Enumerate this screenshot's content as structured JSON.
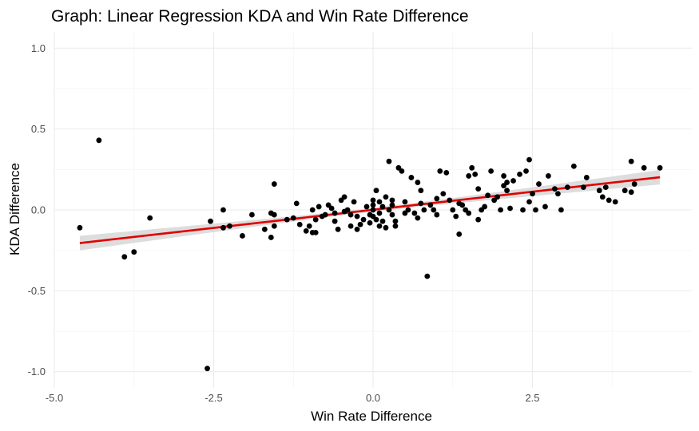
{
  "chart_data": {
    "type": "scatter",
    "title": "Graph: Linear Regression KDA and Win Rate Difference",
    "xlabel": "Win Rate Difference",
    "ylabel": "KDA Difference",
    "xlim": [
      -5.0,
      5.0
    ],
    "ylim": [
      -1.1,
      1.1
    ],
    "x_ticks": [
      -5.0,
      -2.5,
      0.0,
      2.5
    ],
    "x_tick_labels": [
      "-5.0",
      "-2.5",
      "0.0",
      "2.5"
    ],
    "y_ticks": [
      -1.0,
      -0.5,
      0.0,
      0.5,
      1.0
    ],
    "y_tick_labels": [
      "-1.0",
      "-0.5",
      "0.0",
      "0.5",
      "1.0"
    ],
    "grid": true,
    "colors": {
      "points": "#000000",
      "fit_line": "#e00000",
      "confidence_band": "#d9d9d9",
      "grid": "#ebebeb"
    },
    "regression": {
      "x_range": [
        -4.6,
        4.5
      ],
      "y_start": -0.205,
      "y_end": 0.202,
      "ci_halfwidth_ends": 0.045,
      "ci_halfwidth_center": 0.012
    },
    "points": [
      [
        -4.6,
        -0.11
      ],
      [
        -4.3,
        0.43
      ],
      [
        -3.9,
        -0.29
      ],
      [
        -3.75,
        -0.26
      ],
      [
        -3.5,
        -0.05
      ],
      [
        -2.6,
        -0.98
      ],
      [
        -2.55,
        -0.07
      ],
      [
        -2.35,
        0.0
      ],
      [
        -2.35,
        -0.11
      ],
      [
        -2.25,
        -0.1
      ],
      [
        -2.05,
        -0.16
      ],
      [
        -1.9,
        -0.03
      ],
      [
        -1.7,
        -0.12
      ],
      [
        -1.6,
        -0.02
      ],
      [
        -1.6,
        -0.17
      ],
      [
        -1.55,
        0.16
      ],
      [
        -1.55,
        -0.03
      ],
      [
        -1.55,
        -0.1
      ],
      [
        -1.35,
        -0.06
      ],
      [
        -1.25,
        -0.05
      ],
      [
        -1.2,
        0.04
      ],
      [
        -1.15,
        -0.09
      ],
      [
        -1.05,
        -0.13
      ],
      [
        -1.0,
        -0.1
      ],
      [
        -0.95,
        0.0
      ],
      [
        -0.95,
        -0.14
      ],
      [
        -0.9,
        -0.14
      ],
      [
        -0.9,
        -0.06
      ],
      [
        -0.85,
        0.02
      ],
      [
        -0.8,
        -0.04
      ],
      [
        -0.75,
        -0.03
      ],
      [
        -0.7,
        0.03
      ],
      [
        -0.65,
        0.01
      ],
      [
        -0.6,
        -0.02
      ],
      [
        -0.6,
        -0.07
      ],
      [
        -0.55,
        -0.12
      ],
      [
        -0.5,
        0.06
      ],
      [
        -0.45,
        0.08
      ],
      [
        -0.45,
        -0.01
      ],
      [
        -0.4,
        0.0
      ],
      [
        -0.35,
        -0.03
      ],
      [
        -0.35,
        -0.1
      ],
      [
        -0.3,
        0.05
      ],
      [
        -0.25,
        -0.04
      ],
      [
        -0.25,
        -0.12
      ],
      [
        -0.2,
        -0.09
      ],
      [
        -0.15,
        -0.06
      ],
      [
        -0.1,
        0.02
      ],
      [
        -0.05,
        -0.03
      ],
      [
        -0.05,
        -0.08
      ],
      [
        0.0,
        0.06
      ],
      [
        0.0,
        0.03
      ],
      [
        0.0,
        0.0
      ],
      [
        0.0,
        -0.04
      ],
      [
        0.05,
        0.12
      ],
      [
        0.05,
        -0.06
      ],
      [
        0.1,
        0.05
      ],
      [
        0.1,
        -0.02
      ],
      [
        0.1,
        -0.1
      ],
      [
        0.15,
        0.02
      ],
      [
        0.15,
        -0.07
      ],
      [
        0.2,
        0.08
      ],
      [
        0.2,
        -0.11
      ],
      [
        0.25,
        0.3
      ],
      [
        0.25,
        0.0
      ],
      [
        0.3,
        0.06
      ],
      [
        0.3,
        0.03
      ],
      [
        0.3,
        -0.03
      ],
      [
        0.35,
        -0.07
      ],
      [
        0.35,
        -0.1
      ],
      [
        0.4,
        0.26
      ],
      [
        0.45,
        0.24
      ],
      [
        0.5,
        0.05
      ],
      [
        0.5,
        -0.02
      ],
      [
        0.55,
        0.0
      ],
      [
        0.6,
        0.2
      ],
      [
        0.65,
        -0.02
      ],
      [
        0.7,
        0.17
      ],
      [
        0.7,
        -0.05
      ],
      [
        0.75,
        0.12
      ],
      [
        0.75,
        0.04
      ],
      [
        0.8,
        0.0
      ],
      [
        0.85,
        -0.41
      ],
      [
        0.9,
        0.03
      ],
      [
        0.95,
        0.0
      ],
      [
        1.0,
        0.07
      ],
      [
        1.0,
        -0.03
      ],
      [
        1.05,
        0.24
      ],
      [
        1.1,
        0.1
      ],
      [
        1.15,
        0.23
      ],
      [
        1.2,
        0.06
      ],
      [
        1.25,
        0.0
      ],
      [
        1.3,
        -0.04
      ],
      [
        1.35,
        -0.15
      ],
      [
        1.35,
        0.04
      ],
      [
        1.4,
        0.03
      ],
      [
        1.45,
        0.0
      ],
      [
        1.5,
        0.21
      ],
      [
        1.5,
        -0.02
      ],
      [
        1.55,
        0.26
      ],
      [
        1.6,
        0.22
      ],
      [
        1.65,
        0.13
      ],
      [
        1.65,
        -0.06
      ],
      [
        1.7,
        0.0
      ],
      [
        1.75,
        0.02
      ],
      [
        1.8,
        0.09
      ],
      [
        1.85,
        0.24
      ],
      [
        1.9,
        0.06
      ],
      [
        1.95,
        0.08
      ],
      [
        2.0,
        0.0
      ],
      [
        2.05,
        0.21
      ],
      [
        2.05,
        0.15
      ],
      [
        2.1,
        0.17
      ],
      [
        2.1,
        0.12
      ],
      [
        2.15,
        0.01
      ],
      [
        2.2,
        0.18
      ],
      [
        2.3,
        0.22
      ],
      [
        2.35,
        0.0
      ],
      [
        2.4,
        0.24
      ],
      [
        2.45,
        0.31
      ],
      [
        2.45,
        0.05
      ],
      [
        2.5,
        0.1
      ],
      [
        2.55,
        0.0
      ],
      [
        2.6,
        0.16
      ],
      [
        2.7,
        0.02
      ],
      [
        2.75,
        0.21
      ],
      [
        2.85,
        0.13
      ],
      [
        2.9,
        0.1
      ],
      [
        2.95,
        0.0
      ],
      [
        3.05,
        0.14
      ],
      [
        3.15,
        0.27
      ],
      [
        3.3,
        0.14
      ],
      [
        3.35,
        0.2
      ],
      [
        3.55,
        0.12
      ],
      [
        3.6,
        0.08
      ],
      [
        3.65,
        0.14
      ],
      [
        3.7,
        0.06
      ],
      [
        3.8,
        0.05
      ],
      [
        3.95,
        0.12
      ],
      [
        4.05,
        0.3
      ],
      [
        4.05,
        0.11
      ],
      [
        4.1,
        0.16
      ],
      [
        4.25,
        0.26
      ],
      [
        4.5,
        0.26
      ]
    ]
  }
}
